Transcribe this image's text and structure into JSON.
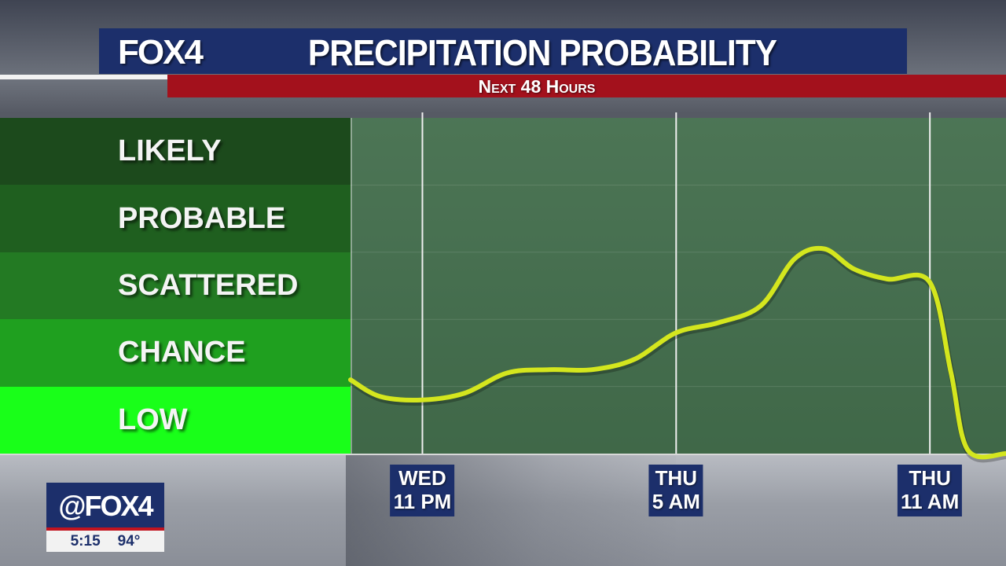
{
  "header": {
    "logo": "FOX4",
    "title": "PRECIPITATION PROBABILITY",
    "subtitle": "Next 48 Hours"
  },
  "bug": {
    "handle": "@FOX4",
    "time": "5:15",
    "temp": "94°"
  },
  "colors": {
    "title_bar": "#1c2f6b",
    "subtitle_bar": "#a3111c",
    "line": "#d4e61e"
  },
  "chart_data": {
    "type": "line",
    "title": "PRECIPITATION PROBABILITY",
    "subtitle": "Next 48 Hours",
    "y_categories": [
      {
        "label": "LIKELY",
        "color": "#1c4a1c"
      },
      {
        "label": "PROBABLE",
        "color": "#1f5f1f"
      },
      {
        "label": "SCATTERED",
        "color": "#237a23"
      },
      {
        "label": "CHANCE",
        "color": "#1fa01f"
      },
      {
        "label": "LOW",
        "color": "#19ff19"
      }
    ],
    "ylim": [
      0,
      5
    ],
    "xlim": [
      -1.7,
      13.8
    ],
    "x_ticks": [
      {
        "x": 0,
        "lines": [
          "WED",
          "11 PM"
        ]
      },
      {
        "x": 6,
        "lines": [
          "THU",
          "5 AM"
        ]
      },
      {
        "x": 12,
        "lines": [
          "THU",
          "11 AM"
        ]
      }
    ],
    "series": [
      {
        "points": [
          [
            -1.7,
            1.1
          ],
          [
            -1.0,
            0.85
          ],
          [
            0,
            0.8
          ],
          [
            1.0,
            0.9
          ],
          [
            2.0,
            1.2
          ],
          [
            3.0,
            1.25
          ],
          [
            4.0,
            1.25
          ],
          [
            5.0,
            1.4
          ],
          [
            6.0,
            1.8
          ],
          [
            7.0,
            1.95
          ],
          [
            8.0,
            2.2
          ],
          [
            8.8,
            2.9
          ],
          [
            9.5,
            3.05
          ],
          [
            10.2,
            2.75
          ],
          [
            11.0,
            2.6
          ],
          [
            12.0,
            2.55
          ],
          [
            12.5,
            1.2
          ],
          [
            12.9,
            0.05
          ],
          [
            13.8,
            0.0
          ]
        ]
      }
    ]
  }
}
